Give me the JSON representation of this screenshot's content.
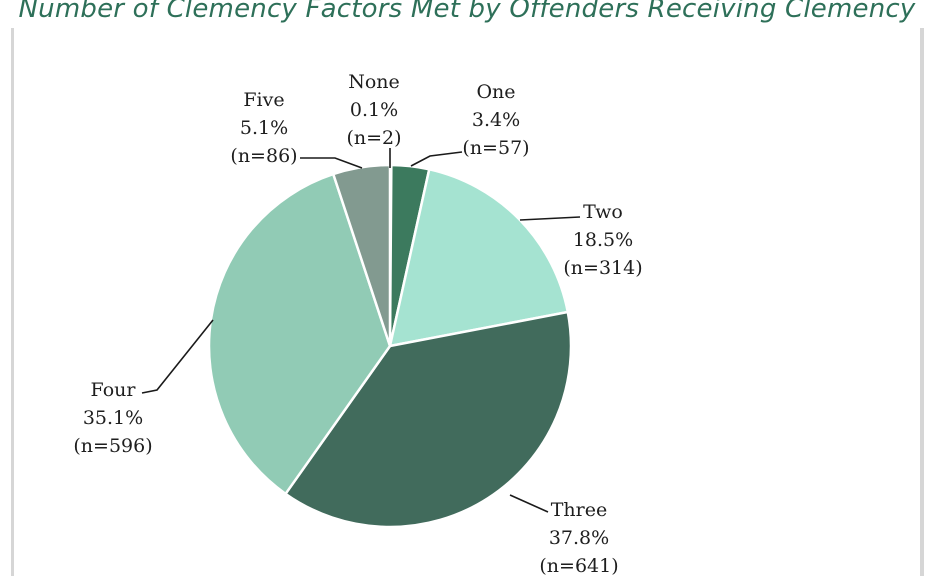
{
  "chart_data": {
    "type": "pie",
    "title": "Number of Clemency Factors Met by Offenders Receiving Clemency",
    "slices": [
      {
        "name": "None",
        "percent_label": "0.1%",
        "n_label": "(n=2)",
        "value": 2,
        "color": "#4f7f6f"
      },
      {
        "name": "One",
        "percent_label": "3.4%",
        "n_label": "(n=57)",
        "value": 57,
        "color": "#3c7a5e"
      },
      {
        "name": "Two",
        "percent_label": "18.5%",
        "n_label": "(n=314)",
        "value": 314,
        "color": "#a5e3d1"
      },
      {
        "name": "Three",
        "percent_label": "37.8%",
        "n_label": "(n=641)",
        "value": 641,
        "color": "#416b5c"
      },
      {
        "name": "Four",
        "percent_label": "35.1%",
        "n_label": "(n=596)",
        "value": 596,
        "color": "#91cbb5"
      },
      {
        "name": "Five",
        "percent_label": "5.1%",
        "n_label": "(n=86)",
        "value": 86,
        "color": "#829a90"
      }
    ]
  }
}
